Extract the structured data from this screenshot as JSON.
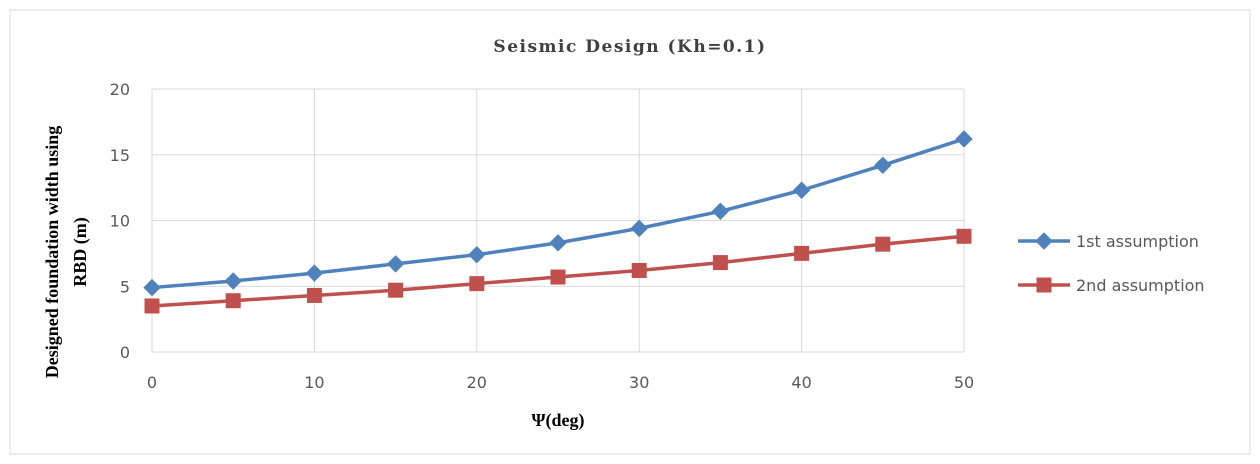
{
  "chart_data": {
    "type": "line",
    "title": "Seismic Design (Kh=0.1)",
    "xlabel": "Ψ(deg)",
    "ylabel_lines": [
      "Designed foundation width using",
      "RBD (m)"
    ],
    "x": [
      0,
      5,
      10,
      15,
      20,
      25,
      30,
      35,
      40,
      45,
      50
    ],
    "xlim": [
      0,
      50
    ],
    "ylim": [
      0,
      20
    ],
    "xticks": [
      0,
      10,
      20,
      30,
      40,
      50
    ],
    "yticks": [
      0,
      5,
      10,
      15,
      20
    ],
    "grid": true,
    "legend_position": "right",
    "series": [
      {
        "name": "1st assumption",
        "marker": "diamond",
        "color": "#4f81bd",
        "values": [
          4.9,
          5.4,
          6.0,
          6.7,
          7.4,
          8.3,
          9.4,
          10.7,
          12.3,
          14.2,
          16.2
        ]
      },
      {
        "name": "2nd assumption",
        "marker": "square",
        "color": "#c0504d",
        "values": [
          3.5,
          3.9,
          4.3,
          4.7,
          5.2,
          5.7,
          6.2,
          6.8,
          7.5,
          8.2,
          8.8
        ]
      }
    ]
  }
}
